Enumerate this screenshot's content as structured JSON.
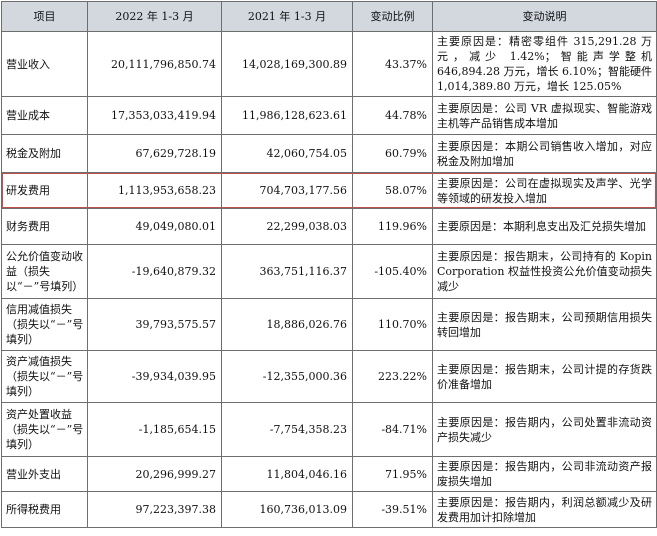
{
  "headers": [
    "项目",
    "2022 年 1-3 月",
    "2021 年 1-3 月",
    "变动比例",
    "变动说明"
  ],
  "rows": [
    {
      "item": "营业收入",
      "cur": "20,111,796,850.74",
      "prev": "14,028,169,300.89",
      "ratio": "43.37%",
      "desc": "主要原因是：精密零组件 315,291.28 万元，减少 1.42%；智能声学整机 646,894.28 万元，增长 6.10%；智能硬件 1,014,389.80 万元，增长 125.05%"
    },
    {
      "item": "营业成本",
      "cur": "17,353,033,419.94",
      "prev": "11,986,128,623.61",
      "ratio": "44.78%",
      "desc": "主要原因是：公司 VR 虚拟现实、智能游戏主机等产品销售成本增加"
    },
    {
      "item": "税金及附加",
      "cur": "67,629,728.19",
      "prev": "42,060,754.05",
      "ratio": "60.79%",
      "desc": "主要原因是：本期公司销售收入增加，对应税金及附加增加"
    },
    {
      "item": "研发费用",
      "cur": "1,113,953,658.23",
      "prev": "704,703,177.56",
      "ratio": "58.07%",
      "desc": "主要原因是：公司在虚拟现实及声学、光学等领域的研发投入增加"
    },
    {
      "item": "财务费用",
      "cur": "49,049,080.01",
      "prev": "22,299,038.03",
      "ratio": "119.96%",
      "desc": "主要原因是：本期利息支出及汇兑损失增加"
    },
    {
      "item": "公允价值变动收益（损失以“－”号填列）",
      "cur": "-19,640,879.32",
      "prev": "363,751,116.37",
      "ratio": "-105.40%",
      "desc": "主要原因是：报告期末，公司持有的 Kopin Corporation 权益性投资公允价值变动损失减少"
    },
    {
      "item": "信用减值损失（损失以“－”号填列）",
      "cur": "39,793,575.57",
      "prev": "18,886,026.76",
      "ratio": "110.70%",
      "desc": "主要原因是：报告期末，公司预期信用损失转回增加"
    },
    {
      "item": "资产减值损失（损失以“－”号填列）",
      "cur": "-39,934,039.95",
      "prev": "-12,355,000.36",
      "ratio": "223.22%",
      "desc": "主要原因是：报告期末，公司计提的存货跌价准备增加"
    },
    {
      "item": "资产处置收益（损失以“－”号填列）",
      "cur": "-1,185,654.15",
      "prev": "-7,754,358.23",
      "ratio": "-84.71%",
      "desc": "主要原因是：报告期内，公司处置非流动资产损失减少"
    },
    {
      "item": "营业外支出",
      "cur": "20,296,999.27",
      "prev": "11,804,046.16",
      "ratio": "71.95%",
      "desc": "主要原因是：报告期内，公司非流动资产报废损失增加"
    },
    {
      "item": "所得税费用",
      "cur": "97,223,397.38",
      "prev": "160,736,013.09",
      "ratio": "-39.51%",
      "desc": "主要原因是：报告期内，利润总额减少及研发费用加计扣除增加"
    }
  ]
}
